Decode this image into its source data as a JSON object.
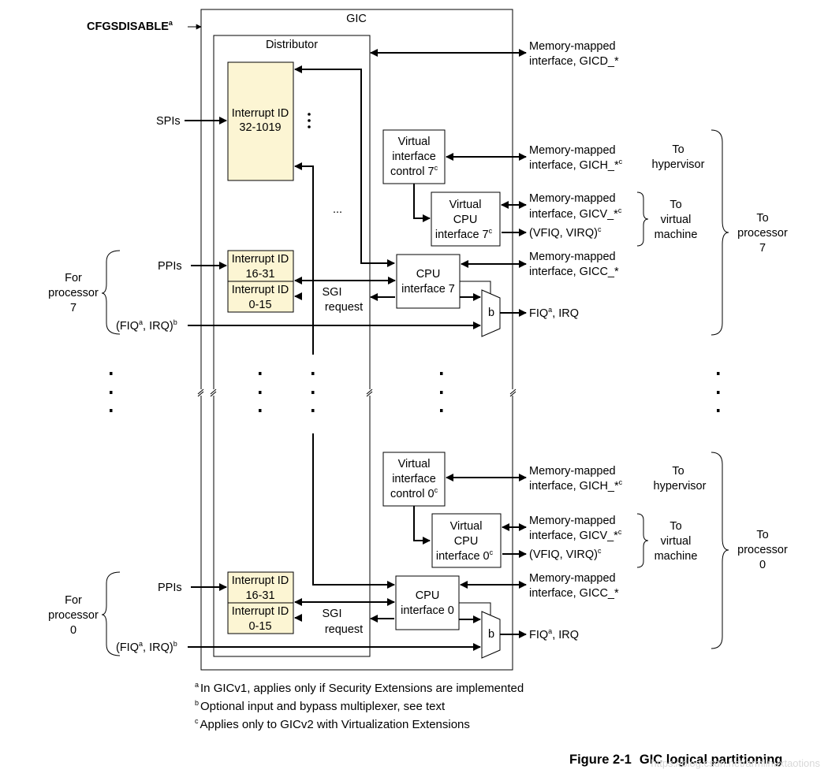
{
  "diagram": {
    "input_cfgsdisable": "CFGSDISABLE",
    "gic_label": "GIC",
    "distributor_label": "Distributor",
    "spis_label": "SPIs",
    "spi_block": {
      "line1": "Interrupt ID",
      "line2": "32-1019"
    },
    "gicd": {
      "line1": "Memory-mapped",
      "line2": "interface, GICD_*"
    },
    "ellipsis": "...",
    "for_label": "For",
    "processor_label": "processor",
    "to_label": "To",
    "hypervisor_label": "hypervisor",
    "virtual_label": "virtual",
    "machine_label": "machine",
    "sgi_request": {
      "line1": "SGI",
      "line2": "request"
    },
    "mux_label": "b",
    "cpus": [
      {
        "num": "7",
        "vic": {
          "line1": "Virtual",
          "line2": "interface",
          "line3": "control 7"
        },
        "vcpu": {
          "line1": "Virtual",
          "line2": "CPU",
          "line3": "interface 7"
        },
        "cpui": {
          "line1": "CPU",
          "line2": "interface 7"
        },
        "ppis": "PPIs",
        "ppi_block": {
          "line1": "Interrupt ID",
          "line2": "16-31"
        },
        "sgi_block": {
          "line1": "Interrupt ID",
          "line2": "0-15"
        },
        "fiq_in": {
          "pre": "(FIQ",
          "mid": ", IRQ)"
        },
        "gich": {
          "line1": "Memory-mapped",
          "line2": "interface, GICH_*"
        },
        "gicv": {
          "line1": "Memory-mapped",
          "line2": "interface, GICV_*"
        },
        "vfiq": "(VFIQ, VIRQ)",
        "gicc": {
          "line1": "Memory-mapped",
          "line2": "interface, GICC_*"
        },
        "fiq_out": {
          "pre": "FIQ",
          "post": ", IRQ"
        }
      },
      {
        "num": "0",
        "vic": {
          "line1": "Virtual",
          "line2": "interface",
          "line3": "control 0"
        },
        "vcpu": {
          "line1": "Virtual",
          "line2": "CPU",
          "line3": "interface 0"
        },
        "cpui": {
          "line1": "CPU",
          "line2": "interface 0"
        },
        "ppis": "PPIs",
        "ppi_block": {
          "line1": "Interrupt ID",
          "line2": "16-31"
        },
        "sgi_block": {
          "line1": "Interrupt ID",
          "line2": "0-15"
        },
        "fiq_in": {
          "pre": "(FIQ",
          "mid": ", IRQ)"
        },
        "gich": {
          "line1": "Memory-mapped",
          "line2": "interface, GICH_*"
        },
        "gicv": {
          "line1": "Memory-mapped",
          "line2": "interface, GICV_*"
        },
        "vfiq": "(VFIQ, VIRQ)",
        "gicc": {
          "line1": "Memory-mapped",
          "line2": "interface, GICC_*"
        },
        "fiq_out": {
          "pre": "FIQ",
          "post": ", IRQ"
        }
      }
    ],
    "sup": {
      "a": "a",
      "b": "b",
      "c": "c"
    },
    "colors": {
      "block_fill": "#fcf5d3",
      "line": "#000000",
      "background": "#ffffff"
    }
  },
  "footnotes": [
    {
      "mark": "a",
      "text": "In GICv1, applies only if Security Extensions are implemented"
    },
    {
      "mark": "b",
      "text": "Optional input and bypass multiplexer, see text"
    },
    {
      "mark": "c",
      "text": "Applies only to GICv2 with Virtualization Extensions"
    }
  ],
  "figure_caption": {
    "number": "Figure 2-1",
    "title": "GIC logical partitioning"
  },
  "watermark": "https://blog.csdn.net/armlinuxtaotions"
}
